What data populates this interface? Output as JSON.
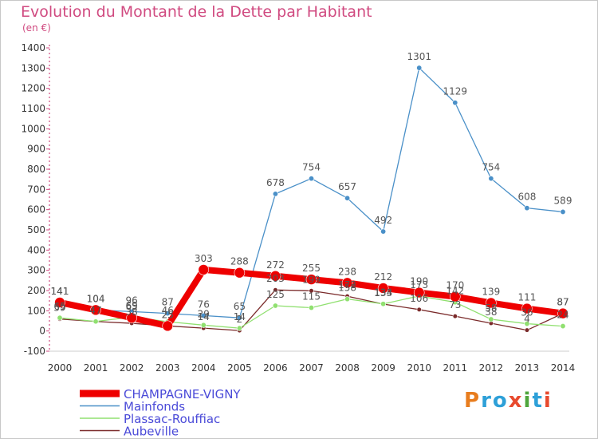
{
  "title": "Evolution du Montant de la Dette par Habitant",
  "subtitle": "(en €)",
  "brand": {
    "letters": [
      {
        "ch": "P",
        "color": "#e87d1e"
      },
      {
        "ch": "r",
        "color": "#2ea0d8"
      },
      {
        "ch": "o",
        "color": "#2ea0d8"
      },
      {
        "ch": "x",
        "color": "#e84a2e"
      },
      {
        "ch": "i",
        "color": "#4fa63c"
      },
      {
        "ch": "t",
        "color": "#2ea0d8"
      },
      {
        "ch": "i",
        "color": "#e84a2e"
      }
    ]
  },
  "chart_data": {
    "type": "line",
    "title": "Evolution du Montant de la Dette par Habitant",
    "subtitle": "(en €)",
    "xlabel": "",
    "ylabel": "",
    "ylim": [
      -100,
      1400
    ],
    "yticks": [
      -100,
      0,
      100,
      200,
      300,
      400,
      500,
      600,
      700,
      800,
      900,
      1000,
      1100,
      1200,
      1300,
      1400
    ],
    "x": [
      "2000",
      "2001",
      "2002",
      "2003",
      "2004",
      "2005",
      "2006",
      "2007",
      "2008",
      "2009",
      "2010",
      "2011",
      "2012",
      "2013",
      "2014"
    ],
    "grid": false,
    "legend_position": "bottom-left",
    "series": [
      {
        "name": "CHAMPAGNE-VIGNY",
        "color": "#ee0000",
        "values": [
          141,
          104,
          65,
          25,
          303,
          288,
          272,
          255,
          238,
          212,
          190,
          170,
          139,
          111,
          87
        ]
      },
      {
        "name": "Mainfonds",
        "color": "#4a90c8",
        "values": [
          141,
          104,
          96,
          87,
          76,
          65,
          678,
          754,
          657,
          492,
          1301,
          1129,
          754,
          608,
          589
        ]
      },
      {
        "name": "Plassac-Rouffiac",
        "color": "#90e070",
        "values": [
          65,
          47,
          69,
          46,
          29,
          14,
          125,
          115,
          158,
          134,
          173,
          142,
          58,
          36,
          24
        ]
      },
      {
        "name": "Aubeville",
        "color": "#7a2a2a",
        "values": [
          59,
          47,
          38,
          25,
          14,
          2,
          203,
          199,
          172,
          133,
          106,
          73,
          38,
          4,
          87
        ]
      }
    ]
  }
}
